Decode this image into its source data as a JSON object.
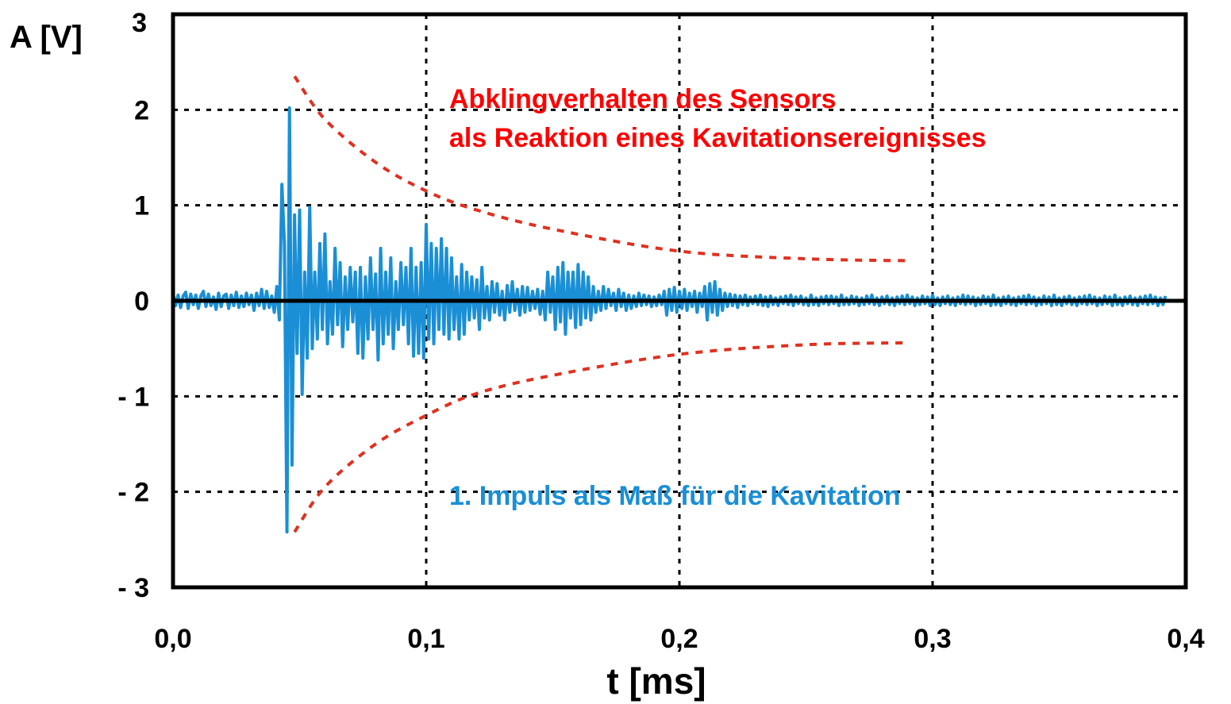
{
  "chart_data": {
    "type": "line",
    "xlabel": "t [ms]",
    "ylabel": "A [V]",
    "xlim": [
      0.0,
      0.4
    ],
    "ylim": [
      -3,
      3
    ],
    "x_ticks": [
      {
        "value": 0.0,
        "label": "0,0"
      },
      {
        "value": 0.1,
        "label": "0,1"
      },
      {
        "value": 0.2,
        "label": "0,2"
      },
      {
        "value": 0.3,
        "label": "0,3"
      },
      {
        "value": 0.4,
        "label": "0,4"
      }
    ],
    "y_ticks": [
      {
        "value": 3,
        "label": "3"
      },
      {
        "value": 2,
        "label": "2"
      },
      {
        "value": 1,
        "label": "1"
      },
      {
        "value": 0,
        "label": "0"
      },
      {
        "value": -1,
        "label": "- 1"
      },
      {
        "value": -2,
        "label": "- 2"
      },
      {
        "value": -3,
        "label": "- 3"
      }
    ],
    "grid": true,
    "annotations": {
      "decay_line1": "Abklingverhalten des Sensors",
      "decay_line2": "als Reaktion eines Kavitationsereignisses",
      "impulse": "1. Impuls als Maß für die Kavitation"
    },
    "colors": {
      "signal": "#1a8fd6",
      "envelope": "#e03020",
      "decay_text": "#ff0000",
      "impulse_text": "#1a8fd6",
      "axis": "#000000"
    },
    "series": [
      {
        "values": {
          "x_start": 0.0,
          "x_step": 0.001,
          "y": [
            0.08,
            -0.05,
            0.06,
            -0.07,
            0.05,
            0.09,
            -0.08,
            0.07,
            -0.04,
            0.06,
            -0.08,
            0.05,
            0.1,
            -0.06,
            0.07,
            -0.05,
            0.04,
            -0.09,
            0.08,
            -0.06,
            0.05,
            0.07,
            -0.08,
            0.06,
            -0.05,
            0.09,
            -0.07,
            0.05,
            -0.06,
            0.08,
            -0.04,
            0.06,
            -0.1,
            0.08,
            -0.05,
            0.12,
            -0.08,
            0.1,
            -0.07,
            0.05,
            -0.12,
            0.15,
            -0.2,
            1.22,
            0.6,
            -2.42,
            2.02,
            -1.72,
            0.9,
            -0.55,
            0.95,
            -0.98,
            0.3,
            -0.6,
            0.98,
            -0.5,
            0.3,
            -0.4,
            0.6,
            -0.3,
            0.7,
            -0.45,
            0.2,
            -0.35,
            0.55,
            -0.25,
            0.4,
            -0.48,
            0.25,
            -0.3,
            0.35,
            -0.22,
            0.3,
            -0.55,
            0.35,
            -0.6,
            0.25,
            -0.4,
            0.45,
            -0.3,
            0.28,
            -0.62,
            0.55,
            -0.45,
            0.3,
            -0.35,
            0.45,
            -0.5,
            0.2,
            -0.3,
            0.4,
            -0.25,
            0.35,
            -0.45,
            0.55,
            -0.58,
            0.35,
            -0.55,
            0.4,
            -0.6,
            0.8,
            -0.4,
            0.6,
            -0.45,
            0.55,
            -0.3,
            0.65,
            -0.35,
            0.55,
            -0.4,
            0.45,
            -0.3,
            0.25,
            -0.4,
            0.38,
            -0.35,
            0.3,
            -0.2,
            0.25,
            -0.18,
            0.22,
            -0.3,
            0.35,
            -0.18,
            0.15,
            -0.2,
            0.2,
            -0.12,
            0.18,
            -0.15,
            0.1,
            -0.2,
            0.16,
            -0.12,
            0.2,
            -0.1,
            0.12,
            -0.15,
            0.15,
            -0.12,
            0.14,
            -0.1,
            0.1,
            -0.08,
            0.12,
            -0.14,
            0.1,
            -0.2,
            0.3,
            -0.12,
            0.25,
            -0.3,
            0.35,
            -0.22,
            0.4,
            -0.35,
            0.3,
            -0.18,
            0.3,
            -0.28,
            0.38,
            -0.25,
            0.3,
            -0.18,
            0.25,
            -0.2,
            0.15,
            -0.12,
            0.1,
            -0.1,
            0.15,
            -0.08,
            0.12,
            -0.05,
            0.08,
            -0.1,
            0.12,
            -0.06,
            0.08,
            -0.1,
            0.06,
            -0.08,
            0.05,
            -0.06,
            0.08,
            -0.05,
            0.06,
            -0.04,
            0.05,
            -0.06,
            0.04,
            -0.05,
            0.06,
            -0.04,
            0.1,
            -0.15,
            0.12,
            -0.1,
            0.14,
            -0.12,
            0.1,
            -0.08,
            0.12,
            -0.1,
            0.08,
            -0.06,
            0.1,
            -0.12,
            0.08,
            -0.06,
            0.15,
            -0.2,
            0.18,
            -0.12,
            0.2,
            -0.15,
            0.12,
            -0.1,
            0.08,
            -0.06,
            0.07,
            -0.05,
            0.06,
            -0.07,
            0.05,
            -0.04,
            0.06,
            -0.05,
            0.04,
            -0.03,
            0.05,
            -0.04,
            0.06,
            -0.05,
            0.04,
            -0.06,
            0.05,
            -0.04,
            0.03,
            -0.05,
            0.04,
            -0.03,
            0.05,
            -0.04,
            0.06,
            -0.05,
            0.04,
            -0.03,
            0.05,
            -0.04,
            0.03,
            -0.05,
            0.06,
            -0.04,
            0.03,
            -0.05,
            0.04,
            -0.03,
            0.05,
            -0.04,
            0.05,
            -0.03,
            0.04,
            -0.05,
            0.06,
            -0.04,
            0.03,
            -0.04,
            0.05,
            -0.03,
            0.04,
            -0.05,
            0.03,
            -0.04,
            0.05,
            -0.03,
            0.06,
            -0.04,
            0.03,
            -0.05,
            0.04,
            -0.03,
            0.05,
            -0.04,
            0.03,
            -0.05,
            0.04,
            -0.03,
            0.05,
            -0.04,
            0.06,
            -0.03,
            0.04,
            -0.05,
            0.03,
            -0.04,
            0.05,
            -0.03,
            0.04,
            -0.05,
            0.06,
            -0.04,
            0.03,
            -0.05,
            0.04,
            -0.03,
            0.05,
            -0.04,
            0.03,
            -0.05,
            0.04,
            -0.03,
            0.06,
            -0.04,
            0.05,
            -0.03,
            0.04,
            -0.05,
            0.03,
            -0.04,
            0.05,
            -0.03,
            0.04,
            -0.05,
            0.06,
            -0.04,
            0.03,
            -0.05,
            0.04,
            -0.03,
            0.05,
            -0.04,
            0.03,
            -0.05,
            0.04,
            -0.03,
            0.05,
            -0.04,
            0.06,
            -0.03,
            0.04,
            -0.05,
            0.03,
            -0.04,
            0.05,
            -0.03,
            0.04,
            -0.05,
            0.06,
            -0.04,
            0.03,
            -0.05,
            0.04,
            -0.03,
            0.05,
            -0.04,
            0.03,
            -0.05,
            0.04,
            -0.03,
            0.05,
            -0.04,
            0.06,
            -0.03,
            0.04,
            -0.05,
            0.03,
            -0.04,
            0.05,
            -0.03,
            0.04,
            -0.05,
            0.06,
            -0.04,
            0.03,
            -0.05,
            0.04,
            -0.03,
            0.05,
            -0.04,
            0.03,
            -0.05,
            0.04,
            -0.03,
            0.05,
            -0.04,
            0.06,
            -0.03,
            0.04,
            -0.05,
            0.03,
            -0.04,
            0.05
          ]
        }
      },
      {
        "values": {
          "x": [
            0.048,
            0.06,
            0.08,
            0.1,
            0.12,
            0.15,
            0.2,
            0.25,
            0.29
          ],
          "y": [
            2.35,
            1.9,
            1.45,
            1.15,
            0.95,
            0.75,
            0.52,
            0.44,
            0.42
          ]
        }
      },
      {
        "values": {
          "x": [
            0.048,
            0.06,
            0.08,
            0.1,
            0.12,
            0.15,
            0.2,
            0.25,
            0.29
          ],
          "y": [
            -2.42,
            -1.95,
            -1.5,
            -1.2,
            -0.97,
            -0.78,
            -0.56,
            -0.46,
            -0.44
          ]
        }
      }
    ]
  }
}
